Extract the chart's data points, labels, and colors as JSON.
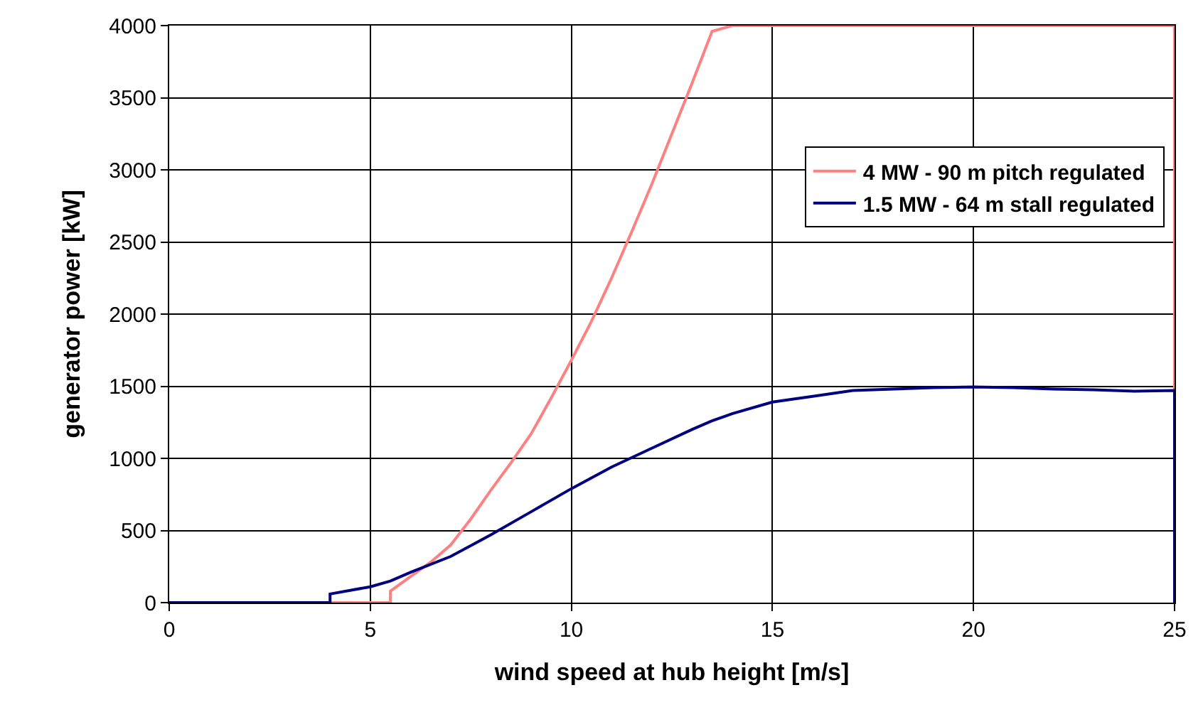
{
  "chart_data": {
    "type": "line",
    "xlabel": "wind speed at hub height [m/s]",
    "ylabel": "generator power [kW]",
    "xlim": [
      0,
      25
    ],
    "xticks": [
      0,
      5,
      10,
      15,
      20,
      25
    ],
    "ylim": [
      0,
      4000
    ],
    "yticks": [
      0,
      500,
      1000,
      1500,
      2000,
      2500,
      3000,
      3500,
      4000
    ],
    "grid": true,
    "legend": "right",
    "marker": "none",
    "line_style": "solid",
    "series": [
      {
        "name": "4 MW - 90 m pitch regulated",
        "color": "#ff8080",
        "x": [
          0,
          5.5,
          5.5,
          6,
          6.5,
          7,
          7.5,
          8,
          8.5,
          9,
          9.5,
          10,
          10.5,
          11,
          11.5,
          12,
          12.5,
          13,
          13.5,
          14,
          25,
          25
        ],
        "values": [
          0,
          0,
          80,
          180,
          280,
          400,
          580,
          780,
          970,
          1170,
          1420,
          1680,
          1950,
          2250,
          2570,
          2900,
          3250,
          3600,
          3960,
          4000,
          4000,
          0
        ]
      },
      {
        "name": "1.5 MW - 64 m stall regulated",
        "color": "#000080",
        "x": [
          0,
          4,
          4,
          5,
          5.5,
          6,
          7,
          8,
          9,
          10,
          11,
          12,
          13,
          13.5,
          14,
          15,
          16,
          17,
          18,
          19,
          20,
          21,
          22,
          23,
          24,
          25,
          25
        ],
        "values": [
          0,
          0,
          60,
          110,
          150,
          210,
          320,
          470,
          630,
          790,
          940,
          1070,
          1200,
          1260,
          1310,
          1390,
          1430,
          1470,
          1480,
          1490,
          1495,
          1490,
          1480,
          1475,
          1465,
          1470,
          0
        ]
      }
    ]
  }
}
